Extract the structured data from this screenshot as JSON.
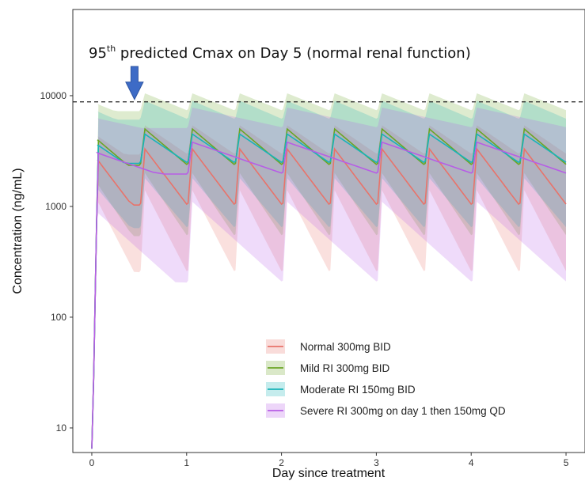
{
  "chart_data": {
    "type": "line",
    "title": "",
    "xlabel": "Day since treatment",
    "ylabel": "Concentration (ng/mL)",
    "xlim": [
      -0.2,
      5.2
    ],
    "ylim": [
      6,
      60000
    ],
    "y_scale": "log",
    "x_ticks": [
      0,
      1,
      2,
      3,
      4,
      5
    ],
    "x_tick_labels": [
      "0",
      "1",
      "2",
      "3",
      "4",
      "5"
    ],
    "y_ticks": [
      10,
      100,
      1000,
      10000
    ],
    "y_tick_labels": [
      "10",
      "100",
      "1000",
      "10000"
    ],
    "grid": false,
    "legend_position": "bottom-right",
    "reference_line": {
      "y": 8800,
      "style": "dashed"
    },
    "annotation": {
      "prefix": "95",
      "superscript": "th",
      "text": " predicted Cmax on Day 5 (normal renal function)",
      "arrow_x": 0.45
    },
    "series": [
      {
        "name": "Normal 300mg BID",
        "color": "#e8736a",
        "dosing": "bid",
        "peak": 3300,
        "trough": 1050,
        "lo_peak": 1400,
        "lo_trough": 260,
        "hi_peak": 5400,
        "hi_trough": 3000
      },
      {
        "name": "Mild RI 300mg BID",
        "color": "#6aa523",
        "dosing": "bid",
        "peak": 5000,
        "trough": 2400,
        "lo_peak": 2000,
        "lo_trough": 550,
        "hi_peak": 10500,
        "hi_trough": 7400
      },
      {
        "name": "Moderate RI 150mg BID",
        "color": "#18b3b8",
        "dosing": "bid",
        "peak": 4500,
        "trough": 2500,
        "lo_peak": 1800,
        "lo_trough": 650,
        "hi_peak": 9000,
        "hi_trough": 6200
      },
      {
        "name": "Severe RI 300mg on day 1 then 150mg QD",
        "color": "#b75de6",
        "dosing": "qd",
        "peak": 3800,
        "trough": 2000,
        "lo_peak": 1100,
        "lo_trough": 210,
        "hi_peak": 7800,
        "hi_trough": 5200
      }
    ]
  }
}
